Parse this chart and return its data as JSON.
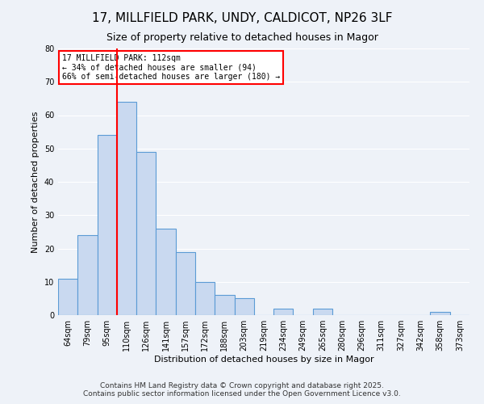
{
  "title": "17, MILLFIELD PARK, UNDY, CALDICOT, NP26 3LF",
  "subtitle": "Size of property relative to detached houses in Magor",
  "xlabel": "Distribution of detached houses by size in Magor",
  "ylabel": "Number of detached properties",
  "bar_labels": [
    "64sqm",
    "79sqm",
    "95sqm",
    "110sqm",
    "126sqm",
    "141sqm",
    "157sqm",
    "172sqm",
    "188sqm",
    "203sqm",
    "219sqm",
    "234sqm",
    "249sqm",
    "265sqm",
    "280sqm",
    "296sqm",
    "311sqm",
    "327sqm",
    "342sqm",
    "358sqm",
    "373sqm"
  ],
  "bar_values": [
    11,
    24,
    54,
    64,
    49,
    26,
    19,
    10,
    6,
    5,
    0,
    2,
    0,
    2,
    0,
    0,
    0,
    0,
    0,
    1,
    0
  ],
  "bar_color": "#c9d9f0",
  "bar_edge_color": "#5b9bd5",
  "red_line_index": 3,
  "ylim": [
    0,
    80
  ],
  "yticks": [
    0,
    10,
    20,
    30,
    40,
    50,
    60,
    70,
    80
  ],
  "annotation_title": "17 MILLFIELD PARK: 112sqm",
  "annotation_line1": "← 34% of detached houses are smaller (94)",
  "annotation_line2": "66% of semi-detached houses are larger (180) →",
  "footer_line1": "Contains HM Land Registry data © Crown copyright and database right 2025.",
  "footer_line2": "Contains public sector information licensed under the Open Government Licence v3.0.",
  "background_color": "#eef2f8",
  "grid_color": "#ffffff",
  "title_fontsize": 11,
  "subtitle_fontsize": 9,
  "axis_label_fontsize": 8,
  "tick_fontsize": 7,
  "footer_fontsize": 6.5
}
